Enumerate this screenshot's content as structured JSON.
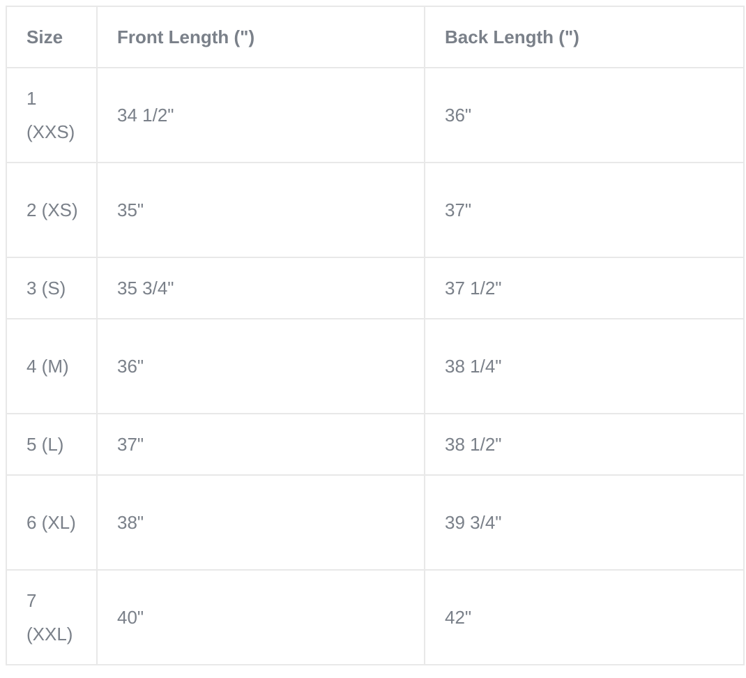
{
  "table": {
    "headers": [
      "Size",
      "Front Length (\")",
      "Back Length (\")"
    ],
    "rows": [
      [
        "1 (XXS)",
        "34 1/2\"",
        "36\""
      ],
      [
        "2 (XS)",
        "35\"",
        "37\""
      ],
      [
        "3 (S)",
        "35 3/4\"",
        "37 1/2\""
      ],
      [
        "4 (M)",
        "36\"",
        "38 1/4\""
      ],
      [
        "5 (L)",
        "37\"",
        "38 1/2\""
      ],
      [
        "6 (XL)",
        "38\"",
        "39 3/4\""
      ],
      [
        "7 (XXL)",
        "40\"",
        "42\""
      ]
    ]
  },
  "colors": {
    "text": "#7a8089",
    "border": "#e8e8e8"
  }
}
